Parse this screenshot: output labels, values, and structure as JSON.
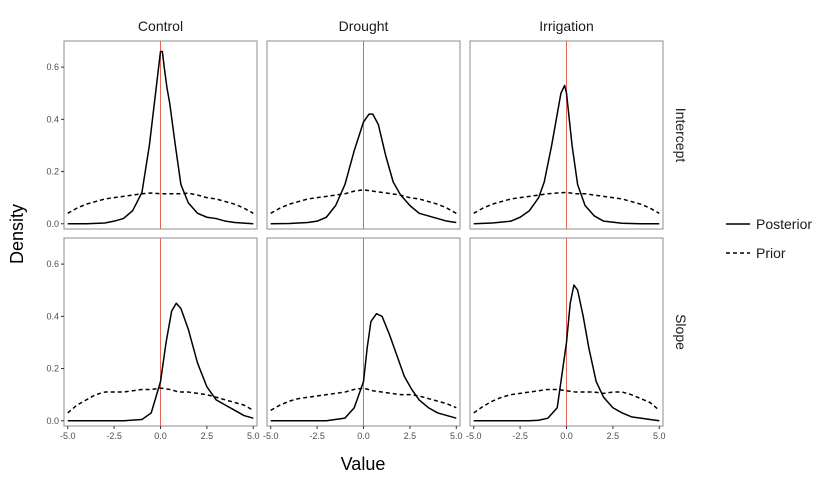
{
  "chart_data": {
    "type": "line",
    "xlabel": "Value",
    "ylabel": "Density",
    "xlim": [
      -5.2,
      5.2
    ],
    "ylim": [
      -0.02,
      0.7
    ],
    "x_ticks": [
      -5,
      -2.5,
      0,
      2.5,
      5
    ],
    "x_tick_labels": [
      "-5.0",
      "-2.5",
      "0.0",
      "2.5",
      "5.0"
    ],
    "y_ticks": [
      0,
      0.2,
      0.4,
      0.6
    ],
    "y_tick_labels": [
      "0.0",
      "0.2",
      "0.4",
      "0.6"
    ],
    "reference_line": {
      "x": 0,
      "color": "#e8645a"
    },
    "grid": false,
    "legend_position": "right",
    "columns": [
      "Control",
      "Drought",
      "Irrigation"
    ],
    "rows": [
      "Intercept",
      "Slope"
    ],
    "legend": [
      {
        "name": "Posterior",
        "dash": "solid"
      },
      {
        "name": "Prior",
        "dash": "dashed"
      }
    ],
    "panels": [
      {
        "column": "Control",
        "row": "Intercept",
        "series": [
          {
            "name": "Posterior",
            "x": [
              -5,
              -4,
              -3,
              -2.5,
              -2,
              -1.5,
              -1,
              -0.6,
              -0.3,
              -0.1,
              0,
              0.1,
              0.2,
              0.35,
              0.5,
              0.8,
              1.1,
              1.5,
              2,
              2.5,
              3,
              3.5,
              4,
              5
            ],
            "y": [
              0.0,
              0.0,
              0.003,
              0.01,
              0.02,
              0.05,
              0.12,
              0.3,
              0.48,
              0.6,
              0.66,
              0.66,
              0.6,
              0.52,
              0.46,
              0.3,
              0.15,
              0.08,
              0.04,
              0.025,
              0.02,
              0.01,
              0.005,
              0.0
            ]
          },
          {
            "name": "Prior",
            "x": [
              -5,
              -4.5,
              -4,
              -3.5,
              -3,
              -2.5,
              -2,
              -1.5,
              -1,
              -0.5,
              0,
              0.5,
              1,
              1.5,
              2,
              2.5,
              3,
              3.5,
              4,
              4.5,
              5
            ],
            "y": [
              0.04,
              0.06,
              0.075,
              0.085,
              0.095,
              0.1,
              0.105,
              0.11,
              0.115,
              0.118,
              0.115,
              0.115,
              0.115,
              0.117,
              0.11,
              0.1,
              0.095,
              0.085,
              0.075,
              0.06,
              0.04
            ]
          }
        ]
      },
      {
        "column": "Drought",
        "row": "Intercept",
        "series": [
          {
            "name": "Posterior",
            "x": [
              -5,
              -4,
              -3,
              -2.5,
              -2,
              -1.5,
              -1,
              -0.5,
              0,
              0.3,
              0.5,
              0.8,
              1.2,
              1.6,
              2,
              2.5,
              3,
              3.5,
              4,
              4.5,
              5
            ],
            "y": [
              0.0,
              0.001,
              0.005,
              0.01,
              0.025,
              0.07,
              0.15,
              0.28,
              0.39,
              0.42,
              0.42,
              0.38,
              0.26,
              0.16,
              0.11,
              0.07,
              0.04,
              0.03,
              0.02,
              0.01,
              0.005
            ]
          },
          {
            "name": "Prior",
            "x": [
              -5,
              -4.5,
              -4,
              -3.5,
              -3,
              -2.5,
              -2,
              -1.5,
              -1,
              -0.5,
              0,
              0.5,
              1,
              1.5,
              2,
              2.5,
              3,
              3.5,
              4,
              4.5,
              5
            ],
            "y": [
              0.04,
              0.06,
              0.075,
              0.085,
              0.095,
              0.1,
              0.105,
              0.11,
              0.115,
              0.125,
              0.13,
              0.125,
              0.12,
              0.115,
              0.11,
              0.1,
              0.095,
              0.085,
              0.075,
              0.06,
              0.04
            ]
          }
        ]
      },
      {
        "column": "Irrigation",
        "row": "Intercept",
        "series": [
          {
            "name": "Posterior",
            "x": [
              -5,
              -4,
              -3,
              -2.5,
              -2,
              -1.5,
              -1.2,
              -0.8,
              -0.5,
              -0.3,
              -0.1,
              0,
              0.3,
              0.6,
              1,
              1.5,
              2,
              3,
              4,
              5
            ],
            "y": [
              0.0,
              0.003,
              0.01,
              0.025,
              0.05,
              0.1,
              0.16,
              0.3,
              0.42,
              0.5,
              0.53,
              0.5,
              0.3,
              0.15,
              0.07,
              0.03,
              0.01,
              0.002,
              0.0,
              0.0
            ]
          },
          {
            "name": "Prior",
            "x": [
              -5,
              -4.5,
              -4,
              -3.5,
              -3,
              -2.5,
              -2,
              -1.5,
              -1,
              -0.5,
              0,
              0.5,
              1,
              1.5,
              2,
              2.5,
              3,
              3.5,
              4,
              4.5,
              5
            ],
            "y": [
              0.04,
              0.06,
              0.075,
              0.085,
              0.095,
              0.1,
              0.105,
              0.11,
              0.115,
              0.118,
              0.12,
              0.115,
              0.115,
              0.11,
              0.105,
              0.1,
              0.095,
              0.085,
              0.075,
              0.06,
              0.04
            ]
          }
        ]
      },
      {
        "column": "Control",
        "row": "Slope",
        "series": [
          {
            "name": "Posterior",
            "x": [
              -5,
              -4,
              -3,
              -2,
              -1,
              -0.5,
              0,
              0.3,
              0.6,
              0.85,
              1.1,
              1.5,
              2,
              2.5,
              3,
              3.5,
              4,
              4.5,
              5
            ],
            "y": [
              0.0,
              0.0,
              0.0,
              0.0,
              0.005,
              0.03,
              0.15,
              0.3,
              0.42,
              0.45,
              0.43,
              0.35,
              0.22,
              0.13,
              0.08,
              0.06,
              0.04,
              0.02,
              0.01
            ]
          },
          {
            "name": "Prior",
            "x": [
              -5,
              -4.5,
              -4,
              -3.5,
              -3,
              -2.5,
              -2,
              -1.5,
              -1,
              -0.5,
              0,
              0.5,
              1,
              1.5,
              2,
              2.5,
              3,
              3.5,
              4,
              4.5,
              5
            ],
            "y": [
              0.03,
              0.06,
              0.08,
              0.1,
              0.11,
              0.11,
              0.11,
              0.115,
              0.12,
              0.12,
              0.125,
              0.12,
              0.11,
              0.11,
              0.105,
              0.1,
              0.09,
              0.08,
              0.07,
              0.06,
              0.04
            ]
          }
        ]
      },
      {
        "column": "Drought",
        "row": "Slope",
        "series": [
          {
            "name": "Posterior",
            "x": [
              -5,
              -4,
              -3,
              -2,
              -1,
              -0.5,
              0,
              0.2,
              0.4,
              0.7,
              1,
              1.4,
              1.8,
              2.2,
              2.6,
              3,
              3.5,
              4,
              4.5,
              5
            ],
            "y": [
              0.0,
              0.0,
              0.0,
              0.0,
              0.01,
              0.05,
              0.15,
              0.28,
              0.38,
              0.41,
              0.4,
              0.33,
              0.25,
              0.17,
              0.12,
              0.08,
              0.05,
              0.03,
              0.02,
              0.01
            ]
          },
          {
            "name": "Prior",
            "x": [
              -5,
              -4.5,
              -4,
              -3.5,
              -3,
              -2.5,
              -2,
              -1.5,
              -1,
              -0.5,
              0,
              0.5,
              1,
              1.5,
              2,
              2.5,
              3,
              3.5,
              4,
              4.5,
              5
            ],
            "y": [
              0.04,
              0.06,
              0.075,
              0.085,
              0.09,
              0.095,
              0.1,
              0.105,
              0.11,
              0.12,
              0.125,
              0.115,
              0.11,
              0.105,
              0.1,
              0.1,
              0.095,
              0.085,
              0.075,
              0.065,
              0.05
            ]
          }
        ]
      },
      {
        "column": "Irrigation",
        "row": "Slope",
        "series": [
          {
            "name": "Posterior",
            "x": [
              -5,
              -4,
              -3,
              -2,
              -1.5,
              -1,
              -0.5,
              0,
              0.2,
              0.4,
              0.6,
              0.9,
              1.2,
              1.6,
              2,
              2.5,
              3,
              3.5,
              4,
              4.5,
              5
            ],
            "y": [
              0.0,
              0.0,
              0.0,
              0.0,
              0.002,
              0.01,
              0.05,
              0.3,
              0.45,
              0.52,
              0.5,
              0.4,
              0.28,
              0.15,
              0.09,
              0.05,
              0.03,
              0.015,
              0.01,
              0.005,
              0.0
            ]
          },
          {
            "name": "Prior",
            "x": [
              -5,
              -4.5,
              -4,
              -3.5,
              -3,
              -2.5,
              -2,
              -1.5,
              -1,
              -0.5,
              0,
              0.5,
              1,
              1.5,
              2,
              2.5,
              3,
              3.5,
              4,
              4.5,
              5
            ],
            "y": [
              0.03,
              0.055,
              0.075,
              0.09,
              0.1,
              0.105,
              0.11,
              0.115,
              0.12,
              0.12,
              0.115,
              0.11,
              0.11,
              0.11,
              0.105,
              0.11,
              0.11,
              0.1,
              0.085,
              0.07,
              0.04
            ]
          }
        ]
      }
    ]
  }
}
